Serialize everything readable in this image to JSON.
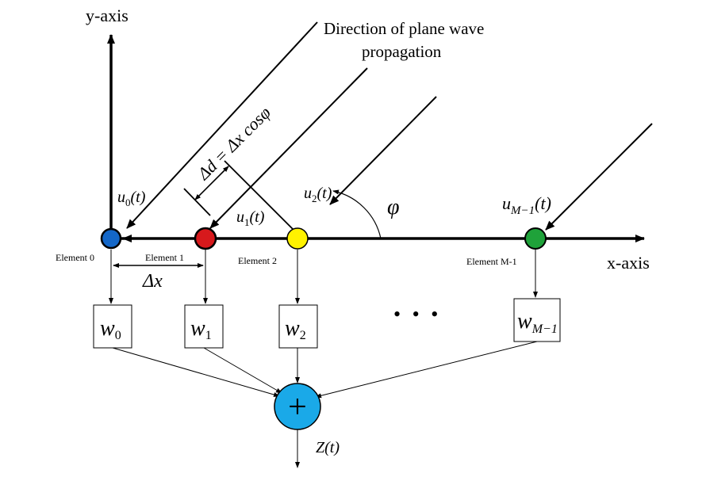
{
  "axes": {
    "y_label": "y-axis",
    "x_label": "x-axis"
  },
  "direction_label": {
    "line1": "Direction of plane wave",
    "line2": "propagation"
  },
  "delta_d_label": "Δd = Δx cosφ",
  "delta_x_label": "Δx",
  "phi_label": "φ",
  "signals": {
    "u0": {
      "base": "u",
      "sub": "0",
      "arg": "(t)"
    },
    "u1": {
      "base": "u",
      "sub": "1",
      "arg": "(t)"
    },
    "u2": {
      "base": "u",
      "sub": "2",
      "arg": "(t)"
    },
    "uM": {
      "base": "u",
      "sub": "M−1",
      "arg": "(t)"
    }
  },
  "elements": [
    {
      "label": "Element 0",
      "color": "#1467c8"
    },
    {
      "label": "Element 1",
      "color": "#d7191c"
    },
    {
      "label": "Element 2",
      "color": "#fff200"
    },
    {
      "label": "Element M-1",
      "color": "#1fa23a"
    }
  ],
  "weights": [
    {
      "base": "w",
      "sub": "0"
    },
    {
      "base": "w",
      "sub": "1"
    },
    {
      "base": "w",
      "sub": "2"
    },
    {
      "base": "w",
      "sub": "M−1"
    }
  ],
  "ellipsis": "• • •",
  "summer": {
    "symbol": "+",
    "color": "#1aa9e8"
  },
  "output_label": "Z(t)"
}
